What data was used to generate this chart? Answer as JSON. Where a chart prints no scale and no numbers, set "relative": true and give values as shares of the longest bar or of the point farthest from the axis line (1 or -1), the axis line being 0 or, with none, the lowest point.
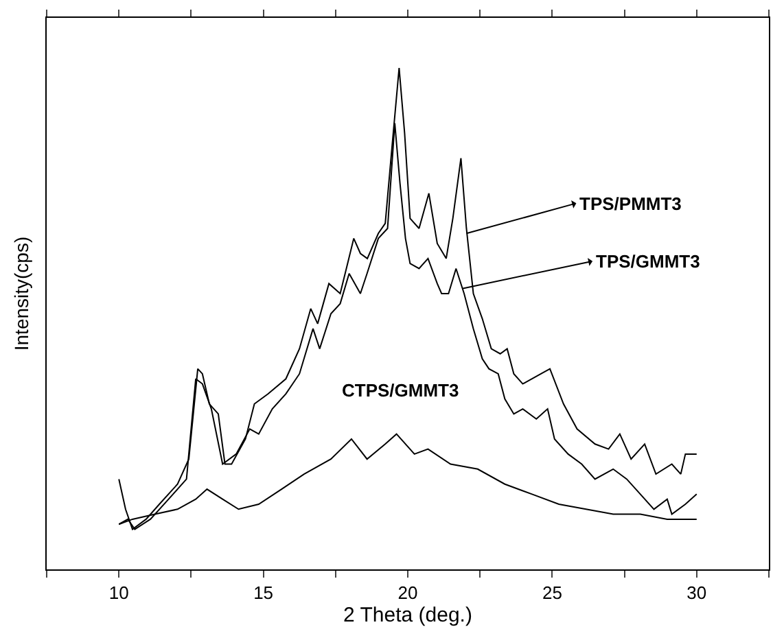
{
  "chart_data": {
    "type": "line",
    "relative": true,
    "xlabel": "2 Theta (deg.)",
    "ylabel": "Intensity(cps)",
    "xlim": [
      7.5,
      32.5
    ],
    "xticks": [
      {
        "value": 7.5,
        "label": null
      },
      10,
      {
        "value": 12.5,
        "label": null
      },
      15,
      {
        "value": 17.5,
        "label": null
      },
      20,
      {
        "value": 22.5,
        "label": null
      },
      25,
      {
        "value": 27.5,
        "label": null
      },
      30,
      {
        "value": 32.5,
        "label": null
      }
    ],
    "marker": "none",
    "line_style": "solid",
    "series": [
      {
        "color": "#000000",
        "x": [
          10,
          10.23,
          10.47,
          10.94,
          11.4,
          12.03,
          12.42,
          12.73,
          12.89,
          13.13,
          13.44,
          13.67,
          13.9,
          14.38,
          14.69,
          15.16,
          15.78,
          16.25,
          16.64,
          16.88,
          17.27,
          17.66,
          18.13,
          18.36,
          18.6,
          18.98,
          19.22,
          19.45,
          19.7,
          19.89,
          20.08,
          20.39,
          20.73,
          21.02,
          21.33,
          21.56,
          21.84,
          22.03,
          22.27,
          22.58,
          22.89,
          23.2,
          23.44,
          23.67,
          23.98,
          24.61,
          24.92,
          25.39,
          25.86,
          26.48,
          26.95,
          27.34,
          27.73,
          28.2,
          28.59,
          29.14,
          29.45,
          29.61,
          30
        ],
        "values": [
          0.18,
          0.12,
          0.08,
          0.1,
          0.13,
          0.17,
          0.22,
          0.4,
          0.39,
          0.33,
          0.31,
          0.21,
          0.21,
          0.26,
          0.33,
          0.35,
          0.38,
          0.44,
          0.52,
          0.49,
          0.57,
          0.55,
          0.66,
          0.63,
          0.62,
          0.67,
          0.69,
          0.84,
          1.0,
          0.87,
          0.7,
          0.68,
          0.75,
          0.65,
          0.62,
          0.7,
          0.82,
          0.68,
          0.55,
          0.5,
          0.44,
          0.43,
          0.44,
          0.39,
          0.37,
          0.39,
          0.4,
          0.33,
          0.28,
          0.25,
          0.24,
          0.27,
          0.22,
          0.25,
          0.19,
          0.21,
          0.19,
          0.23,
          0.23
        ]
      },
      {
        "color": "#000000",
        "x": [
          10,
          10.31,
          10.55,
          11.09,
          11.72,
          12.34,
          12.66,
          12.89,
          13.2,
          13.59,
          14.06,
          14.53,
          14.84,
          15.31,
          15.78,
          16.25,
          16.72,
          16.95,
          17.34,
          17.66,
          17.97,
          18.36,
          18.59,
          18.98,
          19.3,
          19.55,
          19.73,
          19.92,
          20.08,
          20.39,
          20.7,
          21.02,
          21.17,
          21.41,
          21.67,
          21.95,
          22.27,
          22.58,
          22.81,
          23.13,
          23.36,
          23.67,
          23.98,
          24.45,
          24.84,
          25.08,
          25.55,
          26.02,
          26.48,
          27.11,
          27.58,
          28.05,
          28.52,
          28.98,
          29.14,
          29.61,
          30
        ],
        "values": [
          0.09,
          0.1,
          0.08,
          0.1,
          0.14,
          0.18,
          0.38,
          0.37,
          0.32,
          0.21,
          0.23,
          0.28,
          0.27,
          0.32,
          0.35,
          0.39,
          0.48,
          0.44,
          0.51,
          0.53,
          0.59,
          0.55,
          0.59,
          0.66,
          0.68,
          0.89,
          0.77,
          0.66,
          0.61,
          0.6,
          0.62,
          0.57,
          0.55,
          0.55,
          0.6,
          0.55,
          0.48,
          0.42,
          0.4,
          0.39,
          0.34,
          0.31,
          0.32,
          0.3,
          0.32,
          0.26,
          0.23,
          0.21,
          0.18,
          0.2,
          0.18,
          0.15,
          0.12,
          0.14,
          0.11,
          0.13,
          0.15
        ]
      },
      {
        "color": "#000000",
        "x": [
          10,
          10.47,
          11.25,
          12.03,
          12.66,
          13.05,
          13.59,
          14.14,
          14.84,
          15.63,
          16.41,
          17.34,
          18.05,
          18.59,
          19.22,
          19.61,
          20.23,
          20.7,
          21.48,
          22.42,
          23.36,
          24.3,
          25.23,
          26.17,
          27.11,
          28.05,
          28.98,
          30
        ],
        "values": [
          0.09,
          0.1,
          0.11,
          0.12,
          0.14,
          0.16,
          0.14,
          0.12,
          0.13,
          0.16,
          0.19,
          0.22,
          0.26,
          0.22,
          0.25,
          0.27,
          0.23,
          0.24,
          0.21,
          0.2,
          0.17,
          0.15,
          0.13,
          0.12,
          0.11,
          0.11,
          0.1,
          0.1
        ]
      }
    ],
    "annotations": [
      {
        "text": "TPS/PMMT3",
        "x": 22.03,
        "y": 0.67
      },
      {
        "text": "TPS/GMMT3",
        "x": 21.88,
        "y": 0.56
      },
      "CTPS/GMMT3"
    ]
  }
}
